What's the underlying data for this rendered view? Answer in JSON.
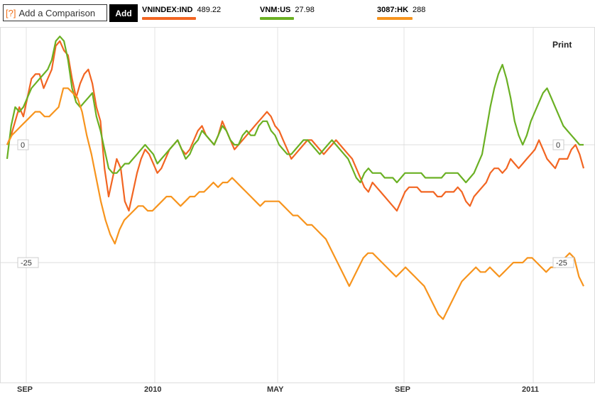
{
  "toolbar": {
    "help_icon": "[?]",
    "compare_placeholder": "Add a Comparison",
    "add_label": "Add",
    "print_label": "Print"
  },
  "legend": [
    {
      "ticker": "VNINDEX:IND",
      "price": "489.22",
      "color": "#f26522"
    },
    {
      "ticker": "VNM:US",
      "price": "27.98",
      "color": "#6ab023"
    },
    {
      "ticker": "3087:HK",
      "price": "288",
      "color": "#f7941d"
    }
  ],
  "chart_data": {
    "type": "line",
    "x_tick_labels": [
      "SEP",
      "2010",
      "MAY",
      "SEP",
      "2011"
    ],
    "y_tick_labels": [
      "0",
      "-25"
    ],
    "ylim": [
      -45,
      23
    ],
    "grid": true,
    "series": [
      {
        "name": "VNINDEX:IND",
        "color": "#f26522",
        "values": [
          0,
          2,
          5,
          8,
          6,
          10,
          14,
          15,
          15,
          12,
          14,
          16,
          21,
          22,
          20,
          19,
          14,
          10,
          13,
          15,
          16,
          13,
          8,
          5,
          -5,
          -11,
          -7,
          -3,
          -5,
          -12,
          -14,
          -10,
          -6,
          -3,
          -1,
          -2,
          -4,
          -6,
          -5,
          -3,
          -1,
          0,
          1,
          -1,
          -2,
          -1,
          1,
          3,
          4,
          2,
          1,
          0,
          2,
          5,
          3,
          1,
          -1,
          0,
          1,
          2,
          3,
          4,
          5,
          6,
          7,
          6,
          4,
          3,
          1,
          -1,
          -3,
          -2,
          -1,
          0,
          1,
          1,
          0,
          -1,
          -2,
          -1,
          0,
          1,
          0,
          -1,
          -2,
          -3,
          -5,
          -7,
          -9,
          -10,
          -8,
          -9,
          -10,
          -11,
          -12,
          -13,
          -14,
          -12,
          -10,
          -9,
          -9,
          -9,
          -10,
          -10,
          -10,
          -10,
          -11,
          -11,
          -10,
          -10,
          -10,
          -9,
          -10,
          -12,
          -13,
          -11,
          -10,
          -9,
          -8,
          -6,
          -5,
          -5,
          -6,
          -5,
          -3,
          -4,
          -5,
          -4,
          -3,
          -2,
          -1,
          1,
          -1,
          -3,
          -4,
          -5,
          -3,
          -3,
          -3,
          -1,
          0,
          -2,
          -5
        ]
      },
      {
        "name": "VNM:US",
        "color": "#6ab023",
        "values": [
          -3,
          4,
          8,
          7,
          8,
          10,
          12,
          13,
          14,
          15,
          16,
          18,
          22,
          23,
          22,
          18,
          12,
          9,
          8,
          9,
          10,
          11,
          6,
          3,
          -1,
          -5,
          -6,
          -6,
          -5,
          -4,
          -4,
          -3,
          -2,
          -1,
          0,
          -1,
          -2,
          -4,
          -3,
          -2,
          -1,
          0,
          1,
          -1,
          -3,
          -2,
          0,
          1,
          3,
          2,
          1,
          0,
          2,
          4,
          3,
          1,
          0,
          0,
          2,
          3,
          2,
          2,
          4,
          5,
          5,
          3,
          2,
          0,
          -1,
          -2,
          -2,
          -1,
          0,
          1,
          1,
          0,
          -1,
          -2,
          -1,
          0,
          1,
          0,
          -1,
          -2,
          -3,
          -5,
          -7,
          -8,
          -6,
          -5,
          -6,
          -6,
          -6,
          -7,
          -7,
          -7,
          -8,
          -7,
          -6,
          -6,
          -6,
          -6,
          -6,
          -7,
          -7,
          -7,
          -7,
          -7,
          -6,
          -6,
          -6,
          -6,
          -7,
          -8,
          -7,
          -6,
          -4,
          -2,
          3,
          8,
          12,
          15,
          17,
          14,
          10,
          5,
          2,
          0,
          2,
          5,
          7,
          9,
          11,
          12,
          10,
          8,
          6,
          4,
          3,
          2,
          1,
          0,
          0
        ]
      },
      {
        "name": "3087:HK",
        "color": "#f7941d",
        "values": [
          0,
          2,
          3,
          4,
          5,
          6,
          7,
          7,
          6,
          6,
          7,
          8,
          12,
          12,
          11,
          10,
          7,
          2,
          -2,
          -7,
          -12,
          -16,
          -19,
          -21,
          -18,
          -16,
          -15,
          -14,
          -13,
          -13,
          -14,
          -14,
          -13,
          -12,
          -11,
          -11,
          -12,
          -13,
          -12,
          -11,
          -11,
          -10,
          -10,
          -9,
          -8,
          -9,
          -8,
          -8,
          -7,
          -8,
          -9,
          -10,
          -11,
          -12,
          -13,
          -12,
          -12,
          -12,
          -12,
          -13,
          -14,
          -15,
          -15,
          -16,
          -17,
          -17,
          -18,
          -19,
          -20,
          -22,
          -24,
          -26,
          -28,
          -30,
          -28,
          -26,
          -24,
          -23,
          -23,
          -24,
          -25,
          -26,
          -27,
          -28,
          -27,
          -26,
          -27,
          -28,
          -29,
          -30,
          -32,
          -34,
          -36,
          -37,
          -35,
          -33,
          -31,
          -29,
          -28,
          -27,
          -26,
          -27,
          -27,
          -26,
          -27,
          -28,
          -27,
          -26,
          -25,
          -25,
          -25,
          -24,
          -24,
          -25,
          -26,
          -27,
          -26,
          -26,
          -25,
          -24,
          -23,
          -24,
          -28,
          -30
        ]
      }
    ]
  }
}
